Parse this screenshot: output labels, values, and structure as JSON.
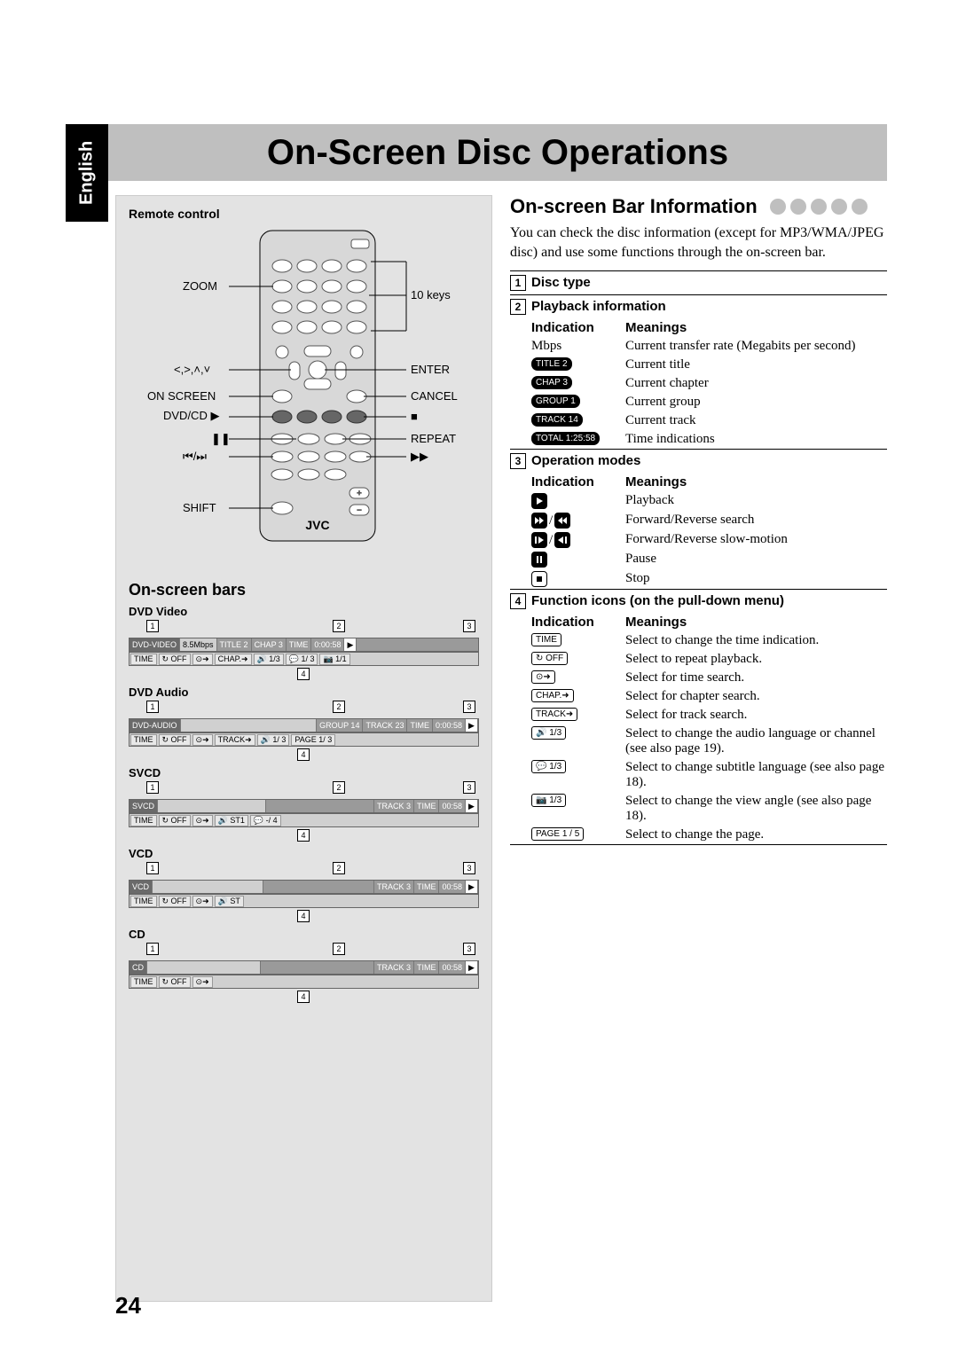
{
  "language_tab": "English",
  "page_title": "On-Screen Disc Operations",
  "page_number": "24",
  "left": {
    "remote_label": "Remote control",
    "labels": {
      "zoom": "ZOOM",
      "arrows": "<,>,˄,˅",
      "onscreen": "ON SCREEN",
      "dvdcd": "DVD/CD ▶",
      "pause": "❚❚",
      "skip": "⏮/⏭",
      "shift": "SHIFT",
      "tenkeys": "10 keys",
      "enter": "ENTER",
      "cancel": "CANCEL",
      "stop": "■",
      "repeat": "REPEAT",
      "ff": "▶▶",
      "brand": "JVC"
    },
    "bars_heading": "On-screen bars",
    "bar_groups": [
      {
        "title": "DVD Video",
        "nums_top": [
          "1",
          "2",
          "3"
        ],
        "row1": [
          "DVD-VIDEO",
          "8.5Mbps",
          "TITLE  2",
          "CHAP  3",
          "TIME",
          "0:00:58",
          "▶"
        ],
        "row2": [
          "TIME",
          "↻ OFF",
          "⊙➜",
          "CHAP.➜",
          "🔊 1/3",
          "💬 1/ 3",
          "📷 1/1"
        ],
        "num4": "4"
      },
      {
        "title": "DVD Audio",
        "nums_top": [
          "1",
          "2",
          "3"
        ],
        "row1": [
          "DVD-AUDIO",
          "",
          "GROUP 14",
          "TRACK 23",
          "TIME",
          "0:00:58",
          "▶"
        ],
        "row2": [
          "TIME",
          "↻ OFF",
          "⊙➜",
          "TRACK➜",
          "🔊 1/ 3",
          "PAGE 1/ 3"
        ],
        "num4": "4"
      },
      {
        "title": "SVCD",
        "nums_top": [
          "1",
          "2",
          "3"
        ],
        "row1": [
          "SVCD",
          "",
          "",
          "TRACK 3",
          "TIME",
          "00:58",
          "▶"
        ],
        "row2": [
          "TIME",
          "↻ OFF",
          "⊙➜",
          "🔊 ST1",
          "💬 -/ 4"
        ],
        "num4": "4"
      },
      {
        "title": "VCD",
        "nums_top": [
          "1",
          "2",
          "3"
        ],
        "row1": [
          "VCD",
          "",
          "",
          "TRACK 3",
          "TIME",
          "00:58",
          "▶"
        ],
        "row2": [
          "TIME",
          "↻ OFF",
          "⊙➜",
          "🔊 ST"
        ],
        "num4": "4"
      },
      {
        "title": "CD",
        "nums_top": [
          "1",
          "2",
          "3"
        ],
        "row1": [
          "CD",
          "",
          "",
          "TRACK 3",
          "TIME",
          "00:58",
          "▶"
        ],
        "row2": [
          "TIME",
          "↻ OFF",
          "⊙➜"
        ],
        "num4": "4"
      }
    ]
  },
  "right": {
    "heading": "On-screen Bar Information",
    "intro": "You can check the disc information (except for MP3/WMA/JPEG disc) and use some functions through the on-screen bar.",
    "sec1": {
      "num": "1",
      "label": "Disc type"
    },
    "sec2": {
      "num": "2",
      "label": "Playback information",
      "h1": "Indication",
      "h2": "Meanings",
      "rows": [
        {
          "ind_text": "Mbps",
          "pill": false,
          "mean": "Current transfer rate (Megabits per second)"
        },
        {
          "ind_text": "TITLE  2",
          "pill": true,
          "mean": "Current title"
        },
        {
          "ind_text": "CHAP  3",
          "pill": true,
          "mean": "Current chapter"
        },
        {
          "ind_text": "GROUP 1",
          "pill": true,
          "mean": "Current group"
        },
        {
          "ind_text": "TRACK 14",
          "pill": true,
          "mean": "Current track"
        },
        {
          "ind_text": "TOTAL 1:25:58",
          "pill": true,
          "mean": "Time indications"
        }
      ]
    },
    "sec3": {
      "num": "3",
      "label": "Operation modes",
      "h1": "Indication",
      "h2": "Meanings",
      "rows": [
        {
          "icon": "play",
          "mean": "Playback"
        },
        {
          "icon": "ffrr",
          "mean": "Forward/Reverse search"
        },
        {
          "icon": "slowfr",
          "mean": "Forward/Reverse slow-motion"
        },
        {
          "icon": "pause",
          "mean": "Pause"
        },
        {
          "icon": "stop",
          "mean": "Stop"
        }
      ]
    },
    "sec4": {
      "num": "4",
      "label": "Function icons (on the pull-down menu)",
      "h1": "Indication",
      "h2": "Meanings",
      "rows": [
        {
          "ind": "TIME",
          "mean": "Select to change the time indication."
        },
        {
          "ind": "↻ OFF",
          "mean": "Select to repeat playback."
        },
        {
          "ind": "⊙➜",
          "mean": "Select for time search."
        },
        {
          "ind": "CHAP.➜",
          "mean": "Select for chapter search."
        },
        {
          "ind": "TRACK➜",
          "mean": "Select for track search."
        },
        {
          "ind": "🔊 1/3",
          "mean": "Select to change the audio language or channel (see also page 19)."
        },
        {
          "ind": "💬 1/3",
          "mean": "Select to change subtitle language (see also page 18)."
        },
        {
          "ind": "📷 1/3",
          "mean": "Select to change the view angle (see also page 18)."
        },
        {
          "ind": "PAGE 1 / 5",
          "mean": "Select to change the page."
        }
      ]
    }
  }
}
